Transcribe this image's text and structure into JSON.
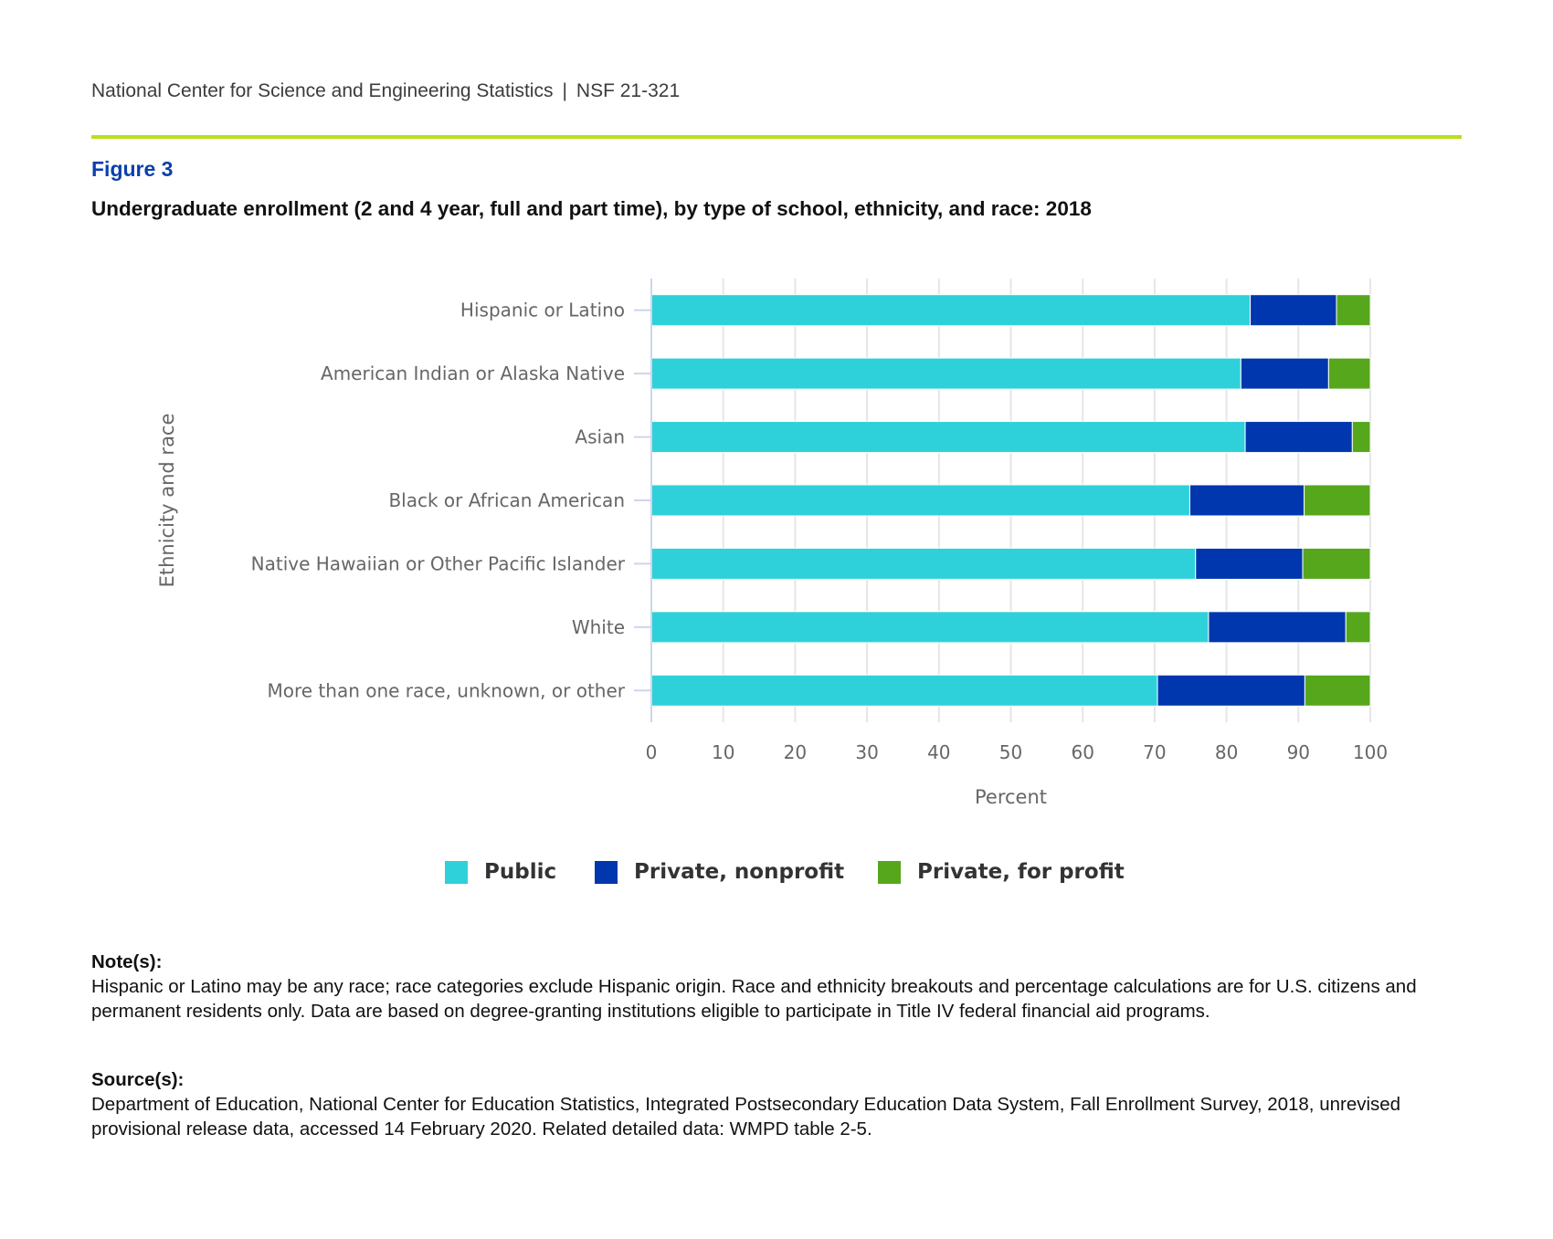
{
  "header": {
    "org": "National Center for Science and Engineering Statistics",
    "separator": "|",
    "report_id": "NSF 21-321",
    "rule_color": "#b8e01c"
  },
  "figure": {
    "number": "Figure 3",
    "title": "Undergraduate enrollment (2 and 4 year, full and part time), by type of school, ethnicity, and race: 2018"
  },
  "chart_data": {
    "type": "bar",
    "orientation": "horizontal",
    "stacked": true,
    "title": "Undergraduate enrollment (2 and 4 year, full and part time), by type of school, ethnicity, and race: 2018",
    "xlabel": "Percent",
    "ylabel": "Ethnicity and race",
    "xlim": [
      0,
      100
    ],
    "x_ticks": [
      0,
      10,
      20,
      30,
      40,
      50,
      60,
      70,
      80,
      90,
      100
    ],
    "grid": "vertical",
    "legend_position": "bottom-center",
    "categories": [
      "Hispanic or Latino",
      "American Indian or Alaska Native",
      "Asian",
      "Black or African American",
      "Native Hawaiian or Other Pacific Islander",
      "White",
      "More than one race, unknown, or other"
    ],
    "series": [
      {
        "name": "Public",
        "color": "#2ed1da",
        "values": [
          83.3,
          82.0,
          82.6,
          74.9,
          75.7,
          77.5,
          70.4
        ]
      },
      {
        "name": "Private, nonprofit",
        "color": "#0037ae",
        "values": [
          12.0,
          12.2,
          14.9,
          15.9,
          14.9,
          19.1,
          20.5
        ]
      },
      {
        "name": "Private, for profit",
        "color": "#56a71b",
        "values": [
          4.7,
          5.8,
          2.5,
          9.2,
          9.4,
          3.4,
          9.1
        ]
      }
    ]
  },
  "notes": {
    "title": "Note(s):",
    "text": "Hispanic or Latino may be any race; race categories exclude Hispanic origin. Race and ethnicity breakouts and percentage calculations are for U.S. citizens and permanent residents only. Data are based on degree-granting institutions eligible to participate in Title IV federal financial aid programs."
  },
  "sources": {
    "title": "Source(s):",
    "text": "Department of Education, National Center for Education Statistics, Integrated Postsecondary Education Data System, Fall Enrollment Survey, 2018, unrevised provisional release data, accessed 14 February 2020. Related detailed data: WMPD table 2-5."
  }
}
